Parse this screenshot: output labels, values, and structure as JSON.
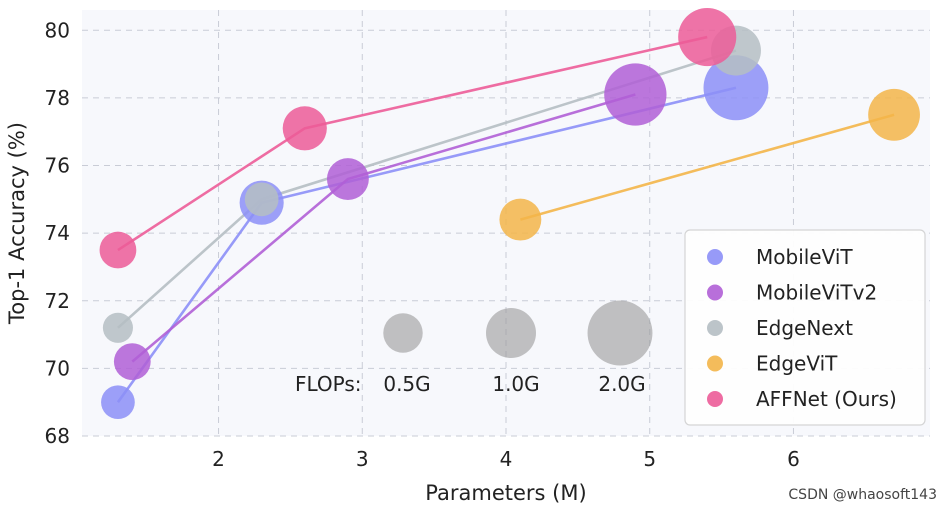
{
  "chart_data": {
    "type": "scatter",
    "xlabel": "Parameters (M)",
    "ylabel": "Top-1 Accuracy (%)",
    "xlim": [
      1.05,
      6.95
    ],
    "ylim": [
      68,
      80.6
    ],
    "xticks": [
      2,
      3,
      4,
      5,
      6
    ],
    "yticks": [
      68,
      70,
      72,
      74,
      76,
      78,
      80
    ],
    "grid": true,
    "legend_position": "bottom-right",
    "series": [
      {
        "name": "MobileViT",
        "color": "#8c8ff7",
        "points": [
          {
            "x": 1.3,
            "y": 69.0,
            "flops": 0.3
          },
          {
            "x": 2.3,
            "y": 74.9,
            "flops": 0.7
          },
          {
            "x": 5.6,
            "y": 78.3,
            "flops": 2.0
          }
        ]
      },
      {
        "name": "MobileViTv2",
        "color": "#b05fd6",
        "points": [
          {
            "x": 1.4,
            "y": 70.2,
            "flops": 0.4
          },
          {
            "x": 2.9,
            "y": 75.6,
            "flops": 0.6
          },
          {
            "x": 4.9,
            "y": 78.1,
            "flops": 1.8
          }
        ]
      },
      {
        "name": "EdgeNext",
        "color": "#b5bec3",
        "points": [
          {
            "x": 1.3,
            "y": 71.2,
            "flops": 0.2
          },
          {
            "x": 2.3,
            "y": 75.0,
            "flops": 0.3
          },
          {
            "x": 5.6,
            "y": 79.4,
            "flops": 1.0
          }
        ]
      },
      {
        "name": "EdgeViT",
        "color": "#f3b549",
        "points": [
          {
            "x": 4.1,
            "y": 74.4,
            "flops": 0.6
          },
          {
            "x": 6.7,
            "y": 77.5,
            "flops": 1.1
          }
        ]
      },
      {
        "name": "AFFNet (Ours)",
        "color": "#ec5c98",
        "points": [
          {
            "x": 1.3,
            "y": 73.5,
            "flops": 0.4
          },
          {
            "x": 2.6,
            "y": 77.1,
            "flops": 0.7
          },
          {
            "x": 5.4,
            "y": 79.8,
            "flops": 1.5
          }
        ]
      }
    ],
    "size_legend": {
      "label": "FLOPs:",
      "items": [
        {
          "label": "0.5G",
          "flops": 0.5
        },
        {
          "label": "1.0G",
          "flops": 1.0
        },
        {
          "label": "2.0G",
          "flops": 2.0
        }
      ]
    }
  },
  "watermark": "CSDN @whaosoft143"
}
